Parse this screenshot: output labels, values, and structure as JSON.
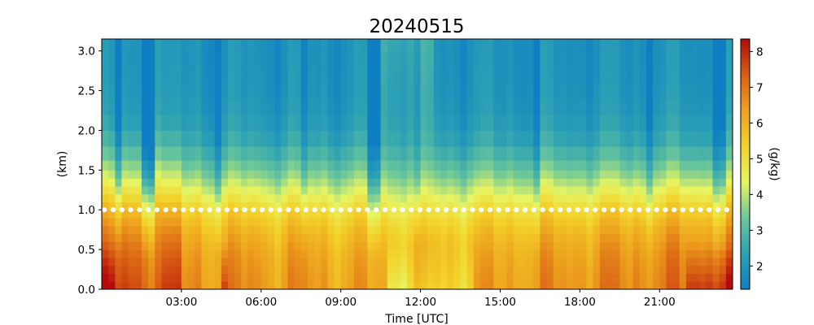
{
  "chart_data": {
    "type": "heatmap",
    "title": "20240515",
    "xlabel": "Time [UTC]",
    "ylabel": "(km)",
    "colorbar_label": "(g/kg)",
    "x_unit": "hours UTC",
    "xlim": [
      0.0,
      23.75
    ],
    "ylim": [
      0.0,
      3.15
    ],
    "x_ticks": [
      3,
      6,
      9,
      12,
      15,
      18,
      21
    ],
    "x_tick_labels": [
      "03:00",
      "06:00",
      "09:00",
      "12:00",
      "15:00",
      "18:00",
      "21:00"
    ],
    "y_ticks": [
      0.0,
      0.5,
      1.0,
      1.5,
      2.0,
      2.5,
      3.0
    ],
    "y_tick_labels": [
      "0.0",
      "0.5",
      "1.0",
      "1.5",
      "2.0",
      "2.5",
      "3.0"
    ],
    "colorbar_range": [
      1.35,
      8.35
    ],
    "colorbar_ticks": [
      2,
      3,
      4,
      5,
      6,
      7,
      8
    ],
    "colorbar_tick_labels": [
      "2",
      "3",
      "4",
      "5",
      "6",
      "7",
      "8"
    ],
    "colormap": [
      "#0f7fc3",
      "#2ca1b4",
      "#6cc79a",
      "#e8f562",
      "#f3d22a",
      "#eda21e",
      "#d95f14",
      "#b30a0a"
    ],
    "dotted_line": {
      "y": 1.0,
      "color": "#ffffff"
    },
    "time_resolution_hours": 0.25,
    "height_levels_km": [
      0.05,
      0.15,
      0.25,
      0.35,
      0.45,
      0.55,
      0.65,
      0.75,
      0.85,
      0.95,
      1.05,
      1.15,
      1.25,
      1.35,
      1.45,
      1.55,
      1.7,
      1.9,
      2.1,
      2.3,
      2.5,
      2.7,
      2.9,
      3.1
    ],
    "anomaly_columns": [
      {
        "start": 0.5,
        "end": 0.75,
        "value": -1.2
      },
      {
        "start": 1.5,
        "end": 2.0,
        "value": -1.6
      },
      {
        "start": 2.0,
        "end": 2.25,
        "value": 0.6
      },
      {
        "start": 4.25,
        "end": 4.5,
        "value": -1.0
      },
      {
        "start": 7.5,
        "end": 7.75,
        "value": -0.8
      },
      {
        "start": 10.0,
        "end": 10.5,
        "value": -1.4
      },
      {
        "start": 11.75,
        "end": 12.0,
        "value": -1.0
      },
      {
        "start": 16.25,
        "end": 16.5,
        "value": -0.9
      },
      {
        "start": 20.5,
        "end": 20.75,
        "value": -0.7
      },
      {
        "start": 23.0,
        "end": 23.5,
        "value": -1.0
      }
    ],
    "low_level_moist_bursts": [
      {
        "start": 4.5,
        "end": 4.75,
        "value": 1.2
      },
      {
        "start": 22.0,
        "end": 23.75,
        "value": 1.0
      },
      {
        "start": 0.0,
        "end": 0.5,
        "value": 0.7
      }
    ],
    "low_level_dry_bursts": [
      {
        "start": 10.75,
        "end": 11.5,
        "value": -2.0
      },
      {
        "start": 11.5,
        "end": 12.5,
        "value": -1.5
      },
      {
        "start": 12.5,
        "end": 14.0,
        "value": -1.2
      }
    ]
  }
}
